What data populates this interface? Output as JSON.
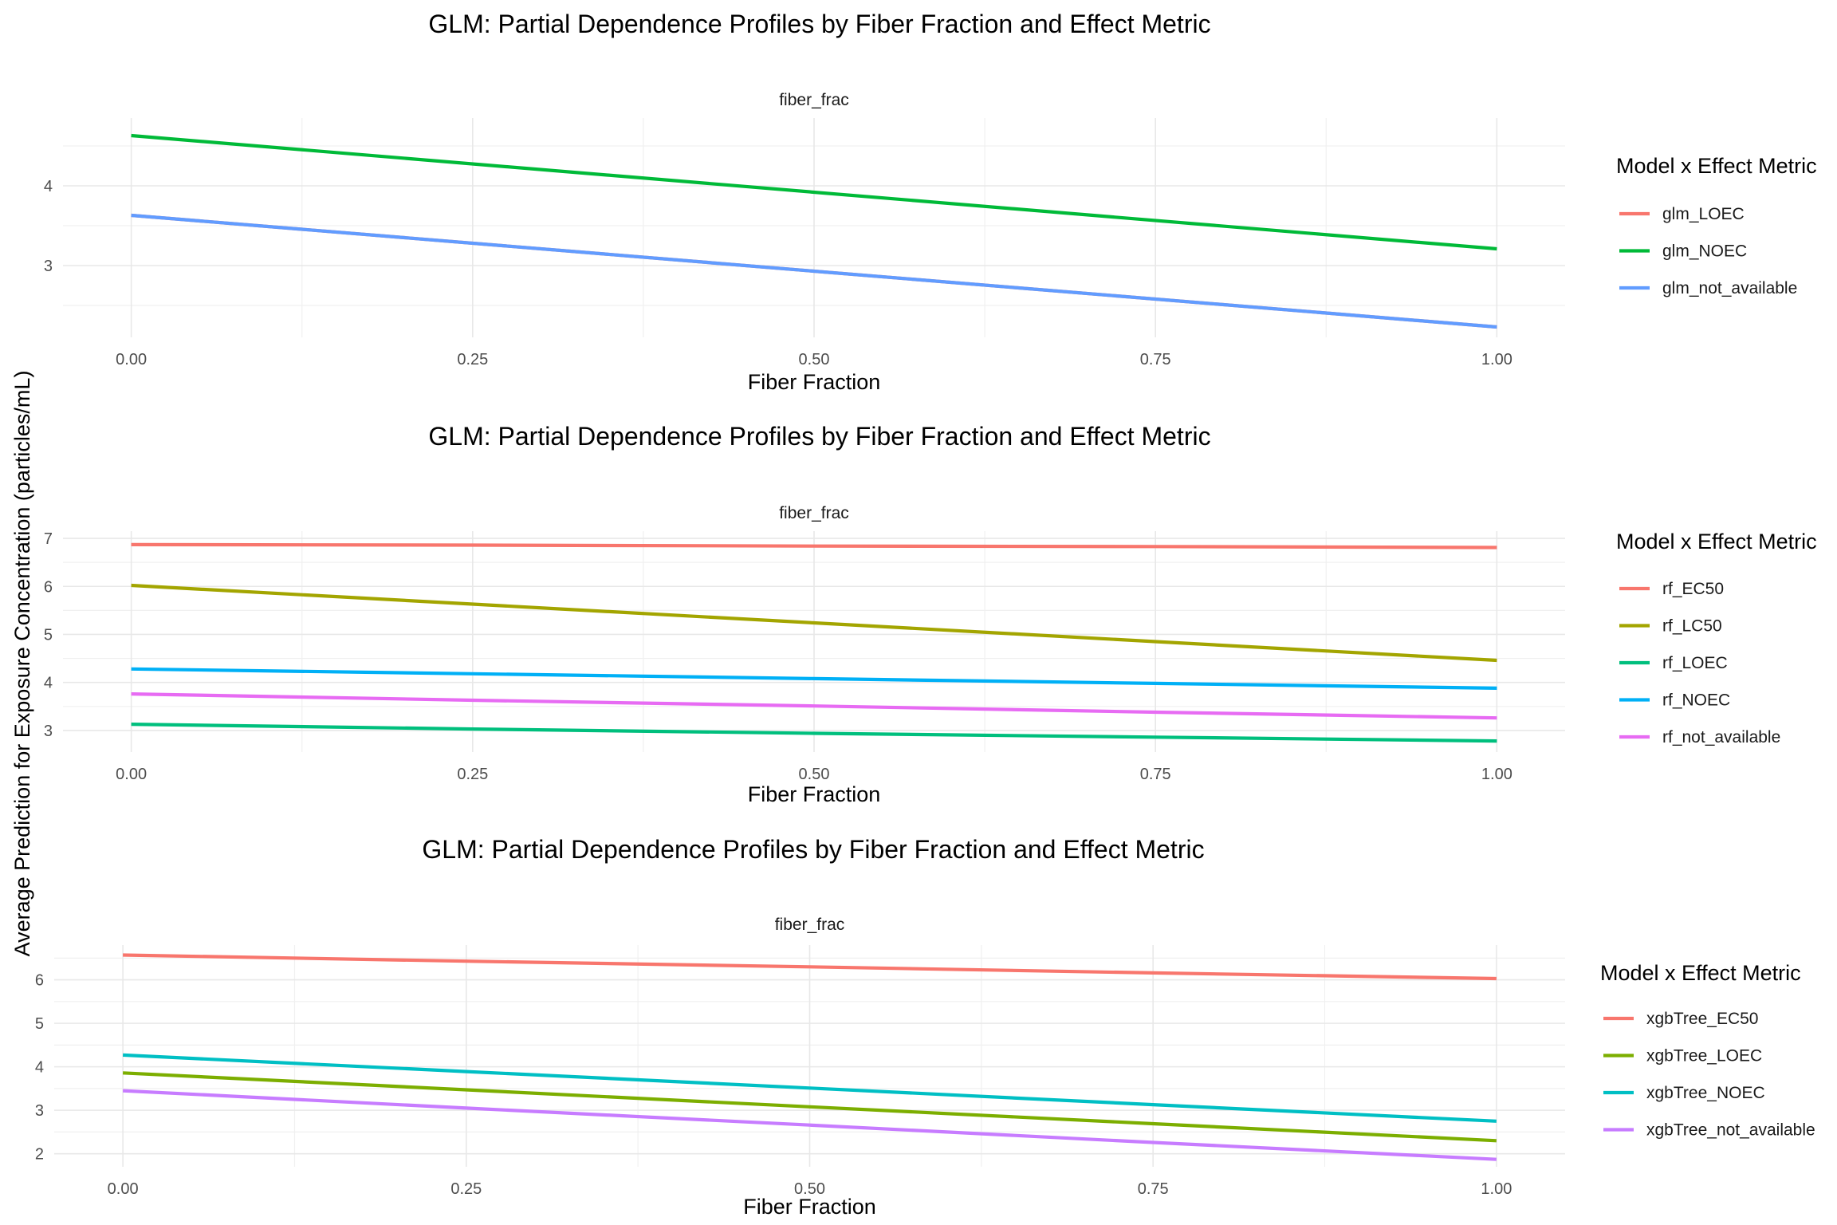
{
  "y_axis_label": "Average Prediction for Exposure Concentration (particles/mL)",
  "chart_data": [
    {
      "type": "line",
      "title": "GLM: Partial Dependence Profiles by Fiber Fraction and Effect Metric",
      "facet_label": "fiber_frac",
      "xlabel": "Fiber Fraction",
      "x_ticks": [
        0,
        0.25,
        0.5,
        0.75,
        1
      ],
      "x_tick_labels": [
        "0.00",
        "0.25",
        "0.50",
        "0.75",
        "1.00"
      ],
      "xlim": [
        -0.05,
        1.05
      ],
      "y_ticks": [
        3,
        4
      ],
      "ylim": [
        2.1,
        4.85
      ],
      "legend_title": "Model x Effect Metric",
      "legend_position": "right",
      "grid": true,
      "series": [
        {
          "name": "glm_LOEC",
          "color": "#F8766D",
          "x": [
            0,
            1
          ],
          "values": [
            3.63,
            2.23
          ]
        },
        {
          "name": "glm_NOEC",
          "color": "#00BA38",
          "x": [
            0,
            1
          ],
          "values": [
            4.63,
            3.21
          ]
        },
        {
          "name": "glm_not_available",
          "color": "#619CFF",
          "x": [
            0,
            1
          ],
          "values": [
            3.63,
            2.23
          ]
        }
      ]
    },
    {
      "type": "line",
      "title": "GLM: Partial Dependence Profiles by Fiber Fraction and Effect Metric",
      "facet_label": "fiber_frac",
      "xlabel": "Fiber Fraction",
      "x_ticks": [
        0,
        0.25,
        0.5,
        0.75,
        1
      ],
      "x_tick_labels": [
        "0.00",
        "0.25",
        "0.50",
        "0.75",
        "1.00"
      ],
      "xlim": [
        -0.05,
        1.05
      ],
      "y_ticks": [
        3,
        4,
        5,
        6,
        7
      ],
      "ylim": [
        2.55,
        7.15
      ],
      "legend_title": "Model x Effect Metric",
      "legend_position": "right",
      "grid": true,
      "series": [
        {
          "name": "rf_EC50",
          "color": "#F8766D",
          "x": [
            0,
            0.25,
            0.5,
            0.75,
            1
          ],
          "values": [
            6.87,
            6.86,
            6.84,
            6.83,
            6.81
          ]
        },
        {
          "name": "rf_LC50",
          "color": "#A3A500",
          "x": [
            0,
            0.25,
            0.5,
            0.75,
            1
          ],
          "values": [
            6.02,
            5.63,
            5.24,
            4.85,
            4.46
          ]
        },
        {
          "name": "rf_LOEC",
          "color": "#00BF7D",
          "x": [
            0,
            0.25,
            0.5,
            0.75,
            1
          ],
          "values": [
            3.13,
            3.03,
            2.94,
            2.86,
            2.78
          ]
        },
        {
          "name": "rf_NOEC",
          "color": "#00B0F6",
          "x": [
            0,
            0.25,
            0.5,
            0.75,
            1
          ],
          "values": [
            4.28,
            4.18,
            4.08,
            3.98,
            3.88
          ]
        },
        {
          "name": "rf_not_available",
          "color": "#E76BF3",
          "x": [
            0,
            0.25,
            0.5,
            0.75,
            1
          ],
          "values": [
            3.76,
            3.63,
            3.51,
            3.38,
            3.26
          ]
        }
      ]
    },
    {
      "type": "line",
      "title": "GLM: Partial Dependence Profiles by Fiber Fraction and Effect Metric",
      "facet_label": "fiber_frac",
      "xlabel": "Fiber Fraction",
      "x_ticks": [
        0,
        0.25,
        0.5,
        0.75,
        1
      ],
      "x_tick_labels": [
        "0.00",
        "0.25",
        "0.50",
        "0.75",
        "1.00"
      ],
      "xlim": [
        -0.05,
        1.05
      ],
      "y_ticks": [
        2,
        3,
        4,
        5,
        6
      ],
      "ylim": [
        1.7,
        6.8
      ],
      "legend_title": "Model x Effect Metric",
      "legend_position": "right",
      "grid": true,
      "series": [
        {
          "name": "xgbTree_EC50",
          "color": "#F8766D",
          "x": [
            0,
            0.25,
            0.5,
            0.75,
            1
          ],
          "values": [
            6.57,
            6.43,
            6.3,
            6.16,
            6.03
          ]
        },
        {
          "name": "xgbTree_LOEC",
          "color": "#7CAE00",
          "x": [
            0,
            0.25,
            0.5,
            0.75,
            1
          ],
          "values": [
            3.86,
            3.47,
            3.08,
            2.69,
            2.3
          ]
        },
        {
          "name": "xgbTree_NOEC",
          "color": "#00BFC4",
          "x": [
            0,
            0.25,
            0.5,
            0.75,
            1
          ],
          "values": [
            4.27,
            3.89,
            3.51,
            3.13,
            2.75
          ]
        },
        {
          "name": "xgbTree_not_available",
          "color": "#C77CFF",
          "x": [
            0,
            0.25,
            0.5,
            0.75,
            1
          ],
          "values": [
            3.45,
            3.05,
            2.66,
            2.26,
            1.87
          ]
        }
      ]
    }
  ]
}
